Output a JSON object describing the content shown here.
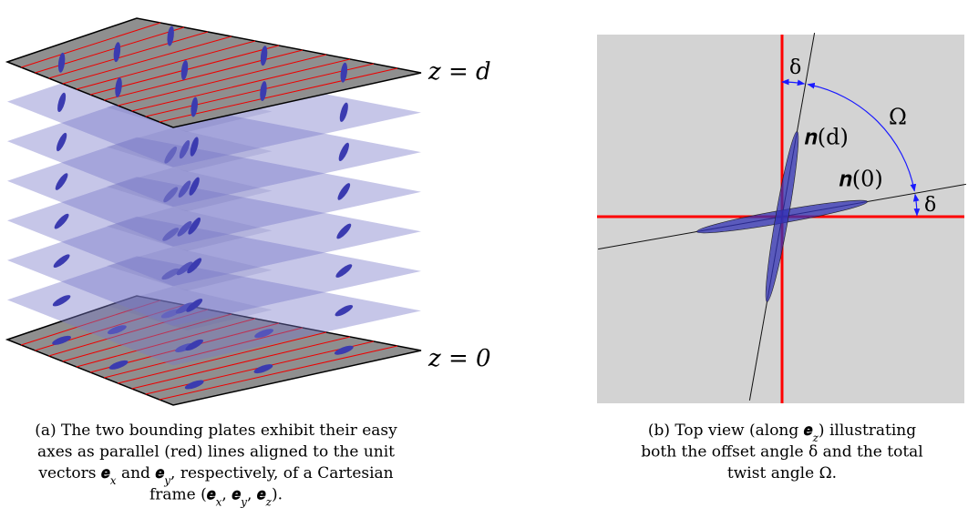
{
  "panel_a": {
    "labels": {
      "top": "z = d",
      "bottom": "z = 0"
    },
    "caption": [
      [
        "(a) The two bounding plates exhibit their easy"
      ],
      [
        "axes as parallel (red) lines aligned to the unit"
      ],
      [
        "vectors ",
        {
          "base": "𝒆",
          "sub": "x"
        },
        " and ",
        {
          "base": "𝒆",
          "sub": "y"
        },
        ", respectively, of a Cartesian"
      ],
      [
        "frame (",
        {
          "base": "𝒆",
          "sub": "x"
        },
        ", ",
        {
          "base": "𝒆",
          "sub": "y"
        },
        ", ",
        {
          "base": "𝒆",
          "sub": "z"
        },
        ")."
      ]
    ]
  },
  "panel_b": {
    "labels": {
      "delta_top": "δ",
      "omega": "Ω",
      "n_d": "𝒏(d)",
      "n_0": "𝒏(0)",
      "delta_right": "δ"
    },
    "caption": [
      [
        "(b) Top view (along ",
        {
          "base": "𝒆",
          "sub": "z"
        },
        ") illustrating"
      ],
      [
        "both the offset angle δ and the total"
      ],
      [
        "twist angle Ω."
      ]
    ]
  }
}
